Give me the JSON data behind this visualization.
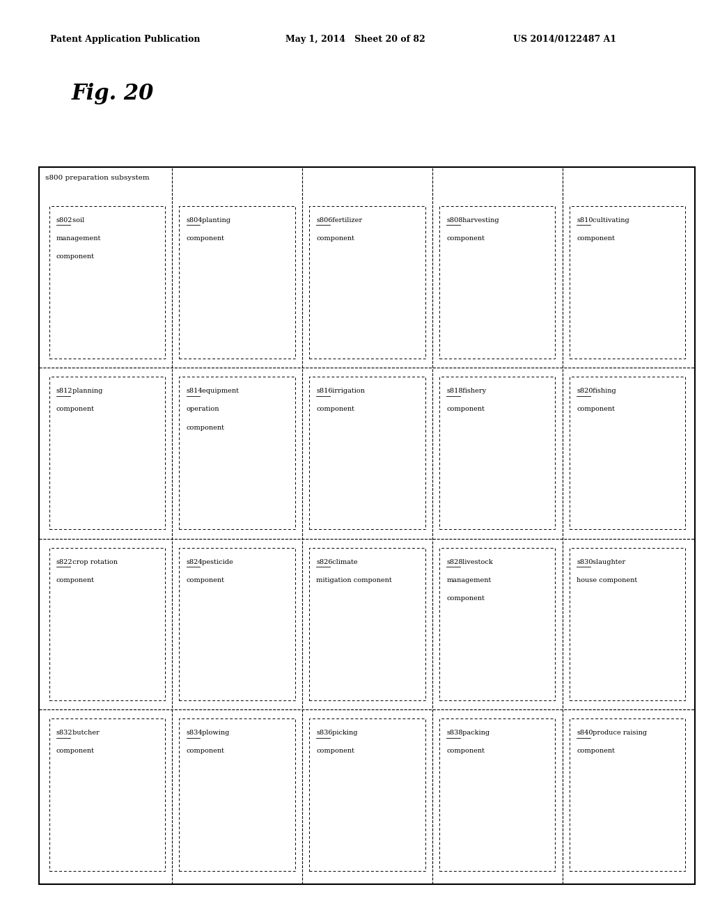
{
  "page_header_left": "Patent Application Publication",
  "page_header_mid": "May 1, 2014   Sheet 20 of 82",
  "page_header_right": "US 2014/0122487 A1",
  "fig_label": "Fig. 20",
  "outer_label": "s800 preparation subsystem",
  "background_color": "#ffffff",
  "grid": {
    "rows": 4,
    "cols": 5
  },
  "cells": [
    {
      "row": 0,
      "col": 0,
      "label": "s802 soil\nmanagement\ncomponent",
      "underline_word": "s802"
    },
    {
      "row": 0,
      "col": 1,
      "label": "s804 planting\ncomponent",
      "underline_word": "s804"
    },
    {
      "row": 0,
      "col": 2,
      "label": "s806 fertilizer\ncomponent",
      "underline_word": "s806"
    },
    {
      "row": 0,
      "col": 3,
      "label": "s808 harvesting\ncomponent",
      "underline_word": "s808"
    },
    {
      "row": 0,
      "col": 4,
      "label": "s810 cultivating\ncomponent",
      "underline_word": "s810"
    },
    {
      "row": 1,
      "col": 0,
      "label": "s812 planning\ncomponent",
      "underline_word": "s812"
    },
    {
      "row": 1,
      "col": 1,
      "label": "s814 equipment\noperation\ncomponent",
      "underline_word": "s814"
    },
    {
      "row": 1,
      "col": 2,
      "label": "s816 irrigation\ncomponent",
      "underline_word": "s816"
    },
    {
      "row": 1,
      "col": 3,
      "label": "s818 fishery\ncomponent",
      "underline_word": "s818"
    },
    {
      "row": 1,
      "col": 4,
      "label": "s820 fishing\ncomponent",
      "underline_word": "s820"
    },
    {
      "row": 2,
      "col": 0,
      "label": "s822 crop rotation\ncomponent",
      "underline_word": "s822"
    },
    {
      "row": 2,
      "col": 1,
      "label": "s824 pesticide\ncomponent",
      "underline_word": "s824"
    },
    {
      "row": 2,
      "col": 2,
      "label": "s826 climate\nmitigation component",
      "underline_word": "s826"
    },
    {
      "row": 2,
      "col": 3,
      "label": "s828 livestock\nmanagement\ncomponent",
      "underline_word": "s828"
    },
    {
      "row": 2,
      "col": 4,
      "label": "s830 slaughter\nhouse component",
      "underline_word": "s830"
    },
    {
      "row": 3,
      "col": 0,
      "label": "s832 butcher\ncomponent",
      "underline_word": "s832"
    },
    {
      "row": 3,
      "col": 1,
      "label": "s834 plowing\ncomponent",
      "underline_word": "s834"
    },
    {
      "row": 3,
      "col": 2,
      "label": "s836 picking\ncomponent",
      "underline_word": "s836"
    },
    {
      "row": 3,
      "col": 3,
      "label": "s838 packing\ncomponent",
      "underline_word": "s838"
    },
    {
      "row": 3,
      "col": 4,
      "label": "s840 produce raising\ncomponent",
      "underline_word": "s840"
    }
  ]
}
